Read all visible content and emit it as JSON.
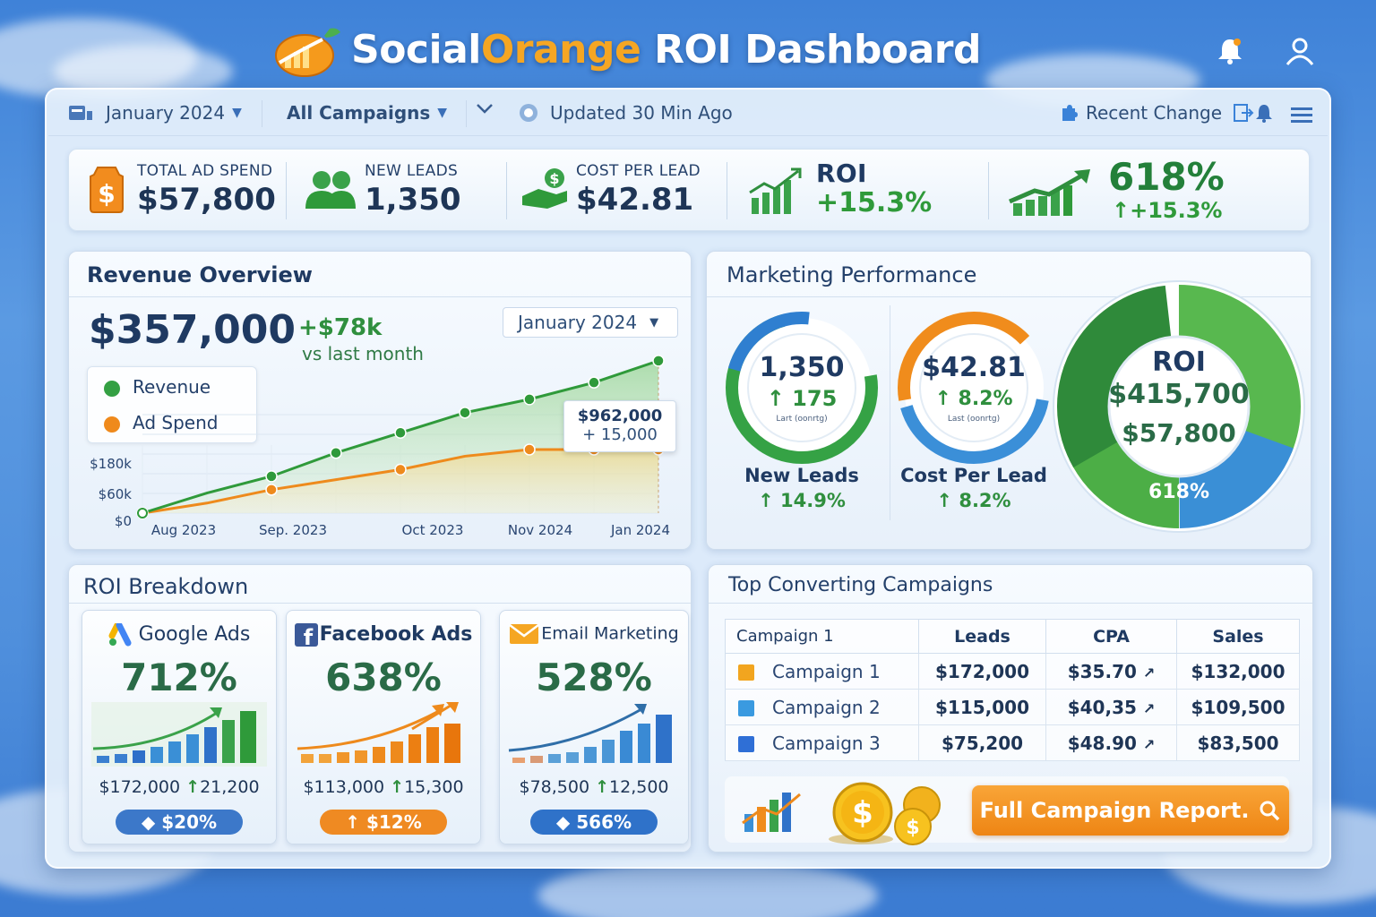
{
  "header": {
    "title_part1": "Social",
    "title_part2": "Orange",
    "title_part3": " ROI Dashboard",
    "icons": [
      "logo-chart-icon",
      "notification-bell-icon",
      "user-profile-icon"
    ]
  },
  "toolbar": {
    "date_filter": "January 2024",
    "campaign_filter": "All Campaigns",
    "updated": "Updated 30 Min Ago",
    "recent_change": "Recent Change"
  },
  "kpis": {
    "total_ad_spend": {
      "label": "TOTAL AD SPEND",
      "value": "$57,800"
    },
    "new_leads": {
      "label": "NEW LEADS",
      "value": "1,350"
    },
    "cost_per_lead": {
      "label": "COST PER LEAD",
      "value": "$42.81"
    },
    "roi": {
      "label": "ROI",
      "value": "+15.3%"
    },
    "roi_pct": {
      "value": "618%",
      "change": "+15.3%"
    }
  },
  "revenue": {
    "title": "Revenue Overview",
    "total": "$357,000",
    "change": "+$78k",
    "change_caption": "vs last month",
    "select": "January 2024",
    "legend": [
      "Revenue",
      "Ad Spend"
    ],
    "tooltip_value": "$962,000",
    "tooltip_change": "+ 15,000",
    "colors": {
      "revenue": "#2f9a3a",
      "ad_spend": "#ee8a1c"
    }
  },
  "chart_data": {
    "type": "line",
    "x_labels": [
      "Aug 2023",
      "Sep. 2023",
      "Oct 2023",
      "Nov 2024",
      "Jan 2024"
    ],
    "y_ticks": [
      "$180k",
      "$60k",
      "$0"
    ],
    "series": [
      {
        "name": "Revenue",
        "values": [
          0,
          60,
          110,
          180,
          240,
          300,
          340,
          390,
          455
        ]
      },
      {
        "name": "Ad Spend",
        "values": [
          0,
          30,
          70,
          100,
          130,
          170,
          190,
          190,
          190
        ]
      }
    ]
  },
  "performance": {
    "title": "Marketing Performance",
    "leads": {
      "value": "1,350",
      "change": "175",
      "sub": "Lart (oonrtg)",
      "label": "New Leads",
      "label_change": "14.9%"
    },
    "cpl": {
      "value": "$42.81",
      "change": "8.2%",
      "sub": "Last (oonrtg)",
      "label": "Cost Per Lead",
      "label_change": "8.2%"
    },
    "roi": {
      "label": "ROI",
      "revenue": "$415,700",
      "spend": "$57,800",
      "pct": "618%"
    }
  },
  "breakdown": {
    "title": "ROI Breakdown",
    "cards": [
      {
        "name": "Google Ads",
        "pct": "712%",
        "amount": "$172,000",
        "delta": "21,200",
        "pill": "$20%",
        "pill_color": "#3c78c9",
        "icon": "google-ads-icon"
      },
      {
        "name": "Facebook Ads",
        "pct": "638%",
        "amount": "$113,000",
        "delta": "15,300",
        "pill": "$12%",
        "pill_color": "#ef8a22",
        "icon": "facebook-icon"
      },
      {
        "name": "Email Marketing",
        "pct": "528%",
        "amount": "$78,500",
        "delta": "12,500",
        "pill": "566%",
        "pill_color": "#2f72c9",
        "icon": "email-icon"
      }
    ]
  },
  "campaigns": {
    "title": "Top Converting Campaigns",
    "headers": [
      "Campaign 1",
      "Leads",
      "CPA",
      "Sales"
    ],
    "rows": [
      {
        "name": "Campaign 1",
        "leads": "$172,000",
        "cpa": "$35.70",
        "sales": "$132,000",
        "color": "#f2a51f"
      },
      {
        "name": "Campaign 2",
        "leads": "$115,000",
        "cpa": "$40,35",
        "sales": "$109,500",
        "color": "#3a9ae0"
      },
      {
        "name": "Campaign 3",
        "leads": "$75,200",
        "cpa": "$48.90",
        "sales": "$83,500",
        "color": "#2f6fd6"
      }
    ],
    "report_button": "Full Campaign Report."
  }
}
